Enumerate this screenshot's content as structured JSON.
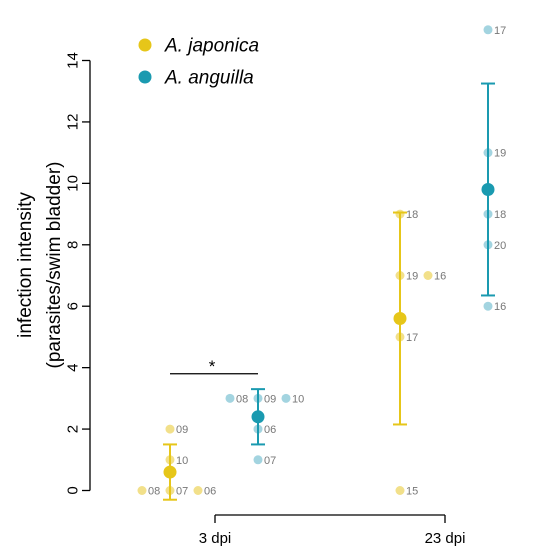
{
  "chart_data": {
    "type": "scatter",
    "ylabel_line1": "infection intensity",
    "ylabel_line2": "(parasites/swim bladder)",
    "categories": [
      "3 dpi",
      "23 dpi"
    ],
    "yticks": [
      0,
      2,
      4,
      6,
      8,
      10,
      12,
      14
    ],
    "ylim": [
      -0.9,
      15.5
    ],
    "legend_position": "top-left",
    "series": [
      {
        "name": "A. japonica",
        "color": "#e6c619",
        "light_color": "#f2e08a",
        "groups": [
          {
            "category": "3 dpi",
            "mean": 0.6,
            "lower": -0.3,
            "upper": 1.5,
            "points": [
              {
                "value": 2,
                "label": "09",
                "offset": 0
              },
              {
                "value": 1,
                "label": "10",
                "offset": 0
              },
              {
                "value": 0,
                "label": "08",
                "offset": -1
              },
              {
                "value": 0,
                "label": "07",
                "offset": 0
              },
              {
                "value": 0,
                "label": "06",
                "offset": 1
              }
            ]
          },
          {
            "category": "23 dpi",
            "mean": 5.6,
            "lower": 2.15,
            "upper": 9.05,
            "points": [
              {
                "value": 9,
                "label": "18",
                "offset": 0
              },
              {
                "value": 7,
                "label": "19",
                "offset": 0
              },
              {
                "value": 7,
                "label": "16",
                "offset": 1
              },
              {
                "value": 5,
                "label": "17",
                "offset": 0
              },
              {
                "value": 0,
                "label": "15",
                "offset": 0
              }
            ]
          }
        ]
      },
      {
        "name": "A. anguilla",
        "color": "#1a9ab0",
        "light_color": "#a3d4e0",
        "groups": [
          {
            "category": "3 dpi",
            "mean": 2.4,
            "lower": 1.5,
            "upper": 3.3,
            "points": [
              {
                "value": 3,
                "label": "08",
                "offset": -1
              },
              {
                "value": 3,
                "label": "09",
                "offset": 0
              },
              {
                "value": 3,
                "label": "10",
                "offset": 1
              },
              {
                "value": 2,
                "label": "06",
                "offset": 0
              },
              {
                "value": 1,
                "label": "07",
                "offset": 0
              }
            ]
          },
          {
            "category": "23 dpi",
            "mean": 9.8,
            "lower": 6.35,
            "upper": 13.25,
            "points": [
              {
                "value": 15,
                "label": "17",
                "offset": 0
              },
              {
                "value": 11,
                "label": "19",
                "offset": 0
              },
              {
                "value": 9,
                "label": "18",
                "offset": 0
              },
              {
                "value": 8,
                "label": "20",
                "offset": 0
              },
              {
                "value": 6,
                "label": "16",
                "offset": 0
              }
            ]
          }
        ]
      }
    ],
    "annotations": [
      {
        "text": "*",
        "category": "3 dpi",
        "value": 3.8
      }
    ]
  }
}
